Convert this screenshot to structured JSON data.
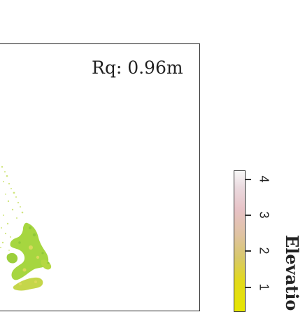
{
  "map": {
    "roughness_label": "Rq: 0.96m"
  },
  "legend": {
    "title": "Elevatio",
    "ticks": [
      "4",
      "3",
      "2",
      "1"
    ],
    "tick_values": [
      4,
      3,
      2,
      1
    ],
    "range": [
      0,
      4.3
    ],
    "colors": {
      "low": "#e6e600",
      "mid": "#d8c86a",
      "high": "#f7f7f7",
      "patch": "#9bd43a"
    }
  }
}
